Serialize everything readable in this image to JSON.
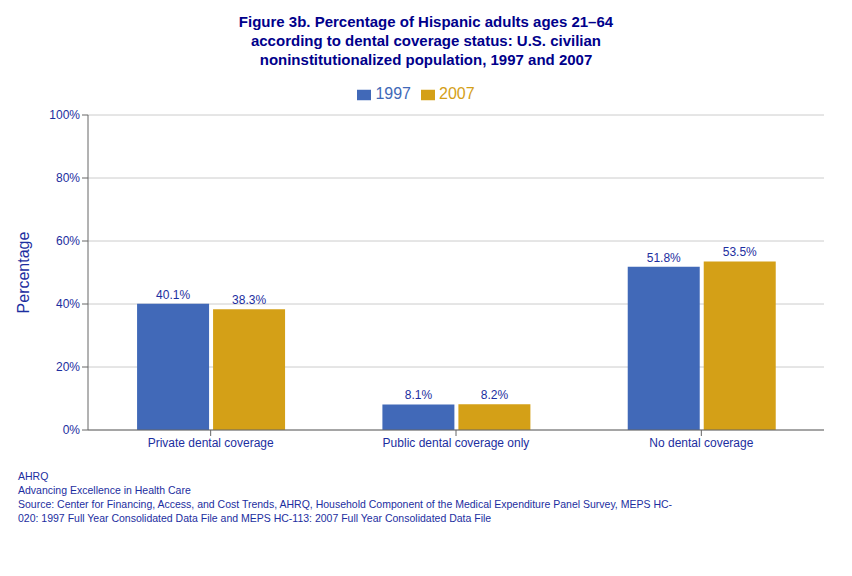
{
  "chart_data": {
    "type": "bar",
    "title": "Figure 3b. Percentage of Hispanic adults ages 21–64\naccording to dental coverage status: U.S. civilian\nnoninstitutionalized population, 1997 and 2007",
    "categories": [
      "Private dental coverage",
      "Public dental coverage only",
      "No dental coverage"
    ],
    "series": [
      {
        "name": "1997",
        "color": "#4169B8",
        "values": [
          40.1,
          8.1,
          51.8
        ],
        "value_labels": [
          "40.1%",
          "8.1%",
          "51.8%"
        ]
      },
      {
        "name": "2007",
        "color": "#D4A017",
        "values": [
          38.3,
          8.2,
          53.5
        ],
        "value_labels": [
          "38.3%",
          "8.2%",
          "53.5%"
        ]
      }
    ],
    "ylabel": "Percentage",
    "ylim": [
      0,
      100
    ],
    "yticks": [
      {
        "value": 0,
        "label": "0%"
      },
      {
        "value": 20,
        "label": "20%"
      },
      {
        "value": 40,
        "label": "40%"
      },
      {
        "value": 60,
        "label": "60%"
      },
      {
        "value": 80,
        "label": "80%"
      },
      {
        "value": 100,
        "label": "100%"
      }
    ],
    "grid": true,
    "legend": "top",
    "data_labels": true,
    "annotations": [
      "AHRQ",
      "Advancing Excellence in Health Care",
      "Source: Center for Financing, Access, and Cost Trends, AHRQ, Household Component of the Medical Expenditure Panel Survey, MEPS HC-",
      "020: 1997 Full Year Consolidated Data File and MEPS HC-113: 2007 Full Year Consolidated Data File"
    ]
  }
}
